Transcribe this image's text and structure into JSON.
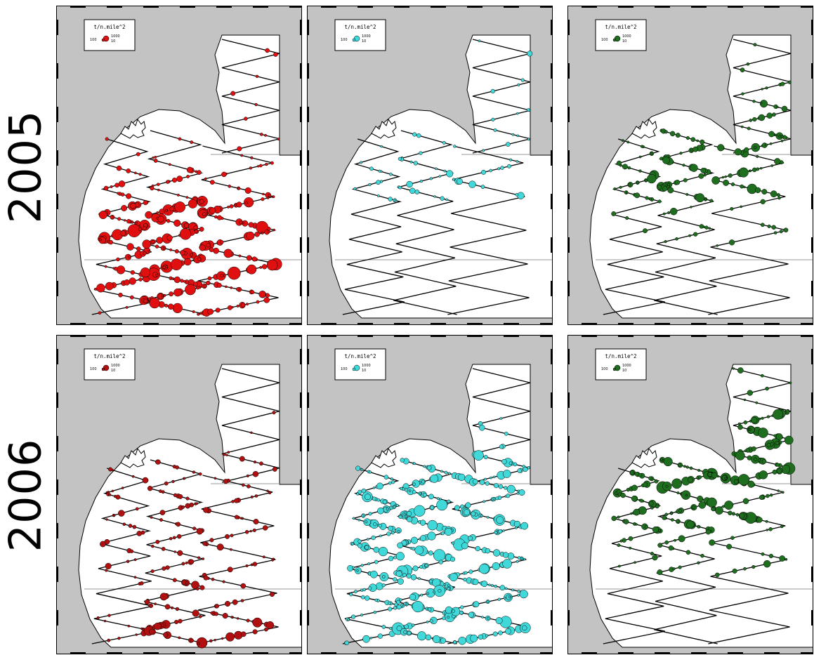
{
  "rows": [
    {
      "year": "2005",
      "panels": [
        {
          "legend_title": "t/n.mile^2",
          "legend_small": "100",
          "legend_big": "1000",
          "legend_mid": "10",
          "color": "#e01010",
          "density": [
            [
              0.02,
              0.05
            ],
            [
              0.05,
              0.08
            ],
            [
              0.08,
              0.12
            ],
            [
              0.2,
              0.45
            ],
            [
              0.9,
              1.0
            ],
            [
              0.5,
              0.95
            ],
            [
              0.1,
              0.75
            ]
          ]
        },
        {
          "legend_title": "t/n.mile^2",
          "legend_small": "100",
          "legend_big": "1000",
          "legend_mid": "10",
          "color": "#40d8d8",
          "density": [
            [
              0.03,
              0.06
            ],
            [
              0.04,
              0.1
            ],
            [
              0.05,
              0.15
            ],
            [
              0.2,
              0.35
            ],
            [
              0.02,
              0.02
            ],
            [
              0.0,
              0.0
            ],
            [
              0.0,
              0.0
            ]
          ]
        },
        {
          "legend_title": "t/n.mile^2",
          "legend_small": "100",
          "legend_big": "1000",
          "legend_mid": "10",
          "color": "#1f6e1f",
          "density": [
            [
              0.02,
              0.04
            ],
            [
              0.1,
              0.35
            ],
            [
              0.2,
              0.55
            ],
            [
              0.55,
              0.65
            ],
            [
              0.05,
              0.2
            ],
            [
              0.0,
              0.0
            ],
            [
              0.0,
              0.0
            ]
          ]
        }
      ]
    },
    {
      "year": "2006",
      "panels": [
        {
          "legend_title": "t/n.mile^2",
          "legend_small": "100",
          "legend_big": "1000",
          "legend_mid": "10",
          "color": "#b01010",
          "density": [
            [
              0.0,
              0.02
            ],
            [
              0.02,
              0.05
            ],
            [
              0.2,
              0.3
            ],
            [
              0.2,
              0.4
            ],
            [
              0.15,
              0.4
            ],
            [
              0.1,
              0.35
            ],
            [
              0.2,
              0.7
            ]
          ]
        },
        {
          "legend_title": "t/n.mile^2",
          "legend_small": "100",
          "legend_big": "1000",
          "legend_mid": "10",
          "color": "#40d8d8",
          "density": [
            [
              0.0,
              0.02
            ],
            [
              0.05,
              0.1
            ],
            [
              0.4,
              0.7
            ],
            [
              0.75,
              0.9
            ],
            [
              0.5,
              0.85
            ],
            [
              0.55,
              0.9
            ],
            [
              0.4,
              0.95
            ]
          ]
        },
        {
          "legend_title": "t/n.mile^2",
          "legend_small": "100",
          "legend_big": "1000",
          "legend_mid": "10",
          "color": "#1f6e1f",
          "density": [
            [
              0.05,
              0.15
            ],
            [
              0.65,
              0.85
            ],
            [
              0.7,
              0.9
            ],
            [
              0.6,
              0.85
            ],
            [
              0.15,
              0.3
            ],
            [
              0.0,
              0.0
            ],
            [
              0.0,
              0.0
            ]
          ]
        }
      ]
    }
  ]
}
